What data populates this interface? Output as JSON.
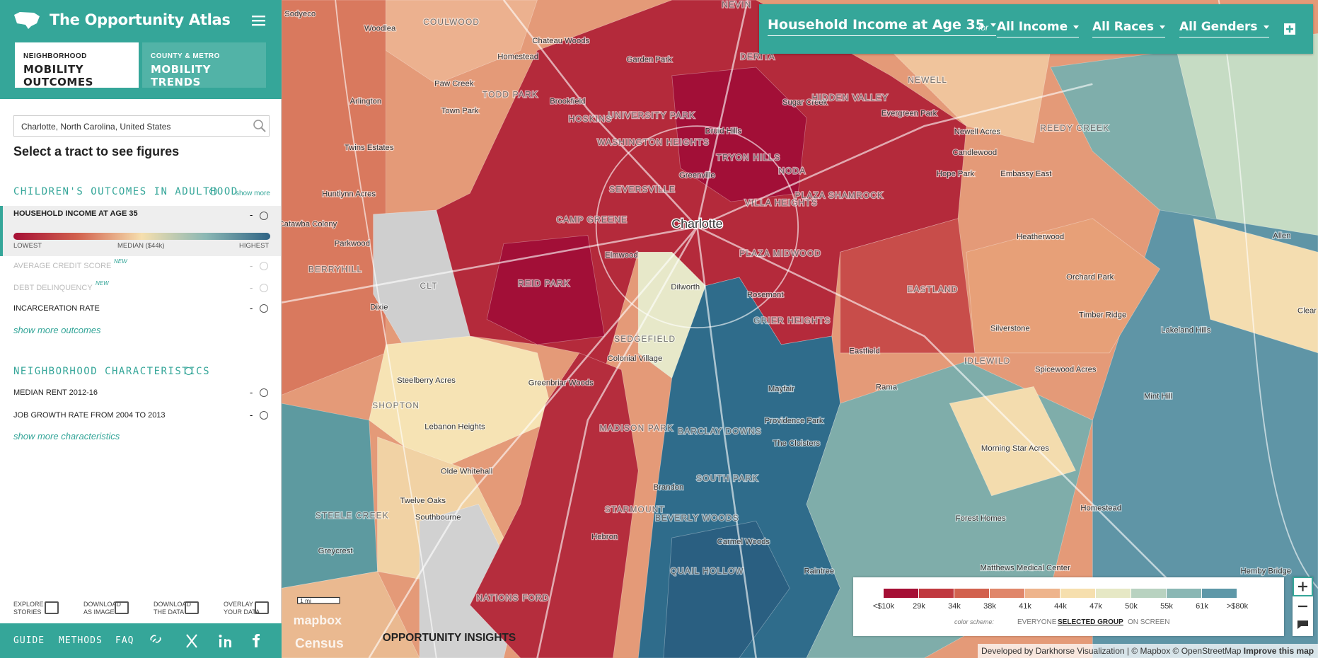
{
  "header": {
    "title": "The Opportunity Atlas",
    "tabs": [
      {
        "kicker": "NEIGHBORHOOD",
        "label": "MOBILITY OUTCOMES"
      },
      {
        "kicker": "COUNTY & METRO",
        "label": "MOBILITY TRENDS"
      }
    ]
  },
  "search": "Charlotte, North Carolina, United States",
  "prompt": "Select a tract to see figures",
  "outcomes": {
    "heading": "CHILDREN'S OUTCOMES IN ADULTHOOD",
    "show_more": "show more",
    "selected": {
      "label": "HOUSEHOLD INCOME AT AGE 35",
      "value": "-",
      "scale": [
        "LOWEST",
        "MEDIAN ($44k)",
        "HIGHEST"
      ]
    },
    "items": [
      {
        "label": "AVERAGE CREDIT SCORE",
        "badge": "NEW",
        "value": "-"
      },
      {
        "label": "DEBT DELINQUENCY",
        "badge": "NEW",
        "value": "-"
      },
      {
        "label": "INCARCERATION RATE",
        "value": "-"
      }
    ],
    "more": "show more outcomes"
  },
  "characteristics": {
    "heading": "NEIGHBORHOOD CHARACTERISTICS",
    "items": [
      {
        "label": "MEDIAN RENT 2012-16",
        "value": "-"
      },
      {
        "label": "JOB GROWTH RATE FROM 2004 TO 2013",
        "value": "-"
      }
    ],
    "more": "show more characteristics"
  },
  "tools": [
    "EXPLORE STORIES",
    "DOWNLOAD AS IMAGE",
    "DOWNLOAD THE DATA",
    "OVERLAY YOUR DATA"
  ],
  "footer": [
    "GUIDE",
    "METHODS",
    "FAQ"
  ],
  "toolbar": {
    "measure": "Household Income at Age 35",
    "for": "for",
    "filters": [
      "All Income",
      "All Races",
      "All Genders"
    ]
  },
  "legend": {
    "labels": [
      "<$10k",
      "29k",
      "34k",
      "38k",
      "41k",
      "44k",
      "47k",
      "50k",
      "55k",
      "61k",
      ">$80k"
    ],
    "scheme_label": "color scheme:",
    "schemes": [
      "EVERYONE",
      "SELECTED GROUP",
      "ON SCREEN"
    ]
  },
  "map": {
    "city": "Charlotte",
    "scale": "1 mi",
    "logos": [
      "mapbox",
      "Census",
      "OPPORTUNITY INSIGHTS"
    ],
    "attribution": "Developed by Darkhorse Visualization | © Mapbox © OpenStreetMap",
    "improve": "Improve this map",
    "labels": [
      "Sodyeco",
      "Woodlea",
      "COULWOOD",
      "Chateau Woods",
      "Homestead",
      "Garden Park",
      "DERITA",
      "NEVIN",
      "NEWELL",
      "Paw Creek",
      "TODD PARK",
      "Arlington",
      "Town Park",
      "Brookfield",
      "HOSKINS",
      "UNIVERSITY PARK",
      "WASHINGTON HEIGHTS",
      "Druid Hills",
      "Sugar Creek",
      "HIDDEN VALLEY",
      "Evergreen Park",
      "Newell Acres",
      "REEDY CREEK",
      "Candlewood",
      "Embassy East",
      "Twins Estates",
      "TRYON HILLS",
      "NODA",
      "Hope Park",
      "SEVERSVILLE",
      "Greenville",
      "PLAZA SHAMROCK",
      "Huntlynn Acres",
      "VILLA HEIGHTS",
      "CAMP GREENE",
      "Catawba Colony",
      "Heatherwood",
      "Allen",
      "Parkwood",
      "Elmwood",
      "PLAZA MIDWOOD",
      "Orchard Park",
      "BERRYHILL",
      "CLT",
      "REID PARK",
      "Dilworth",
      "Rosemont",
      "EASTLAND",
      "Dixie",
      "Timber Ridge",
      "GRIER HEIGHTS",
      "Clear",
      "Silverstone",
      "Lakeland Hills",
      "SEDGEFIELD",
      "Colonial Village",
      "Eastfield",
      "IDLEWILD",
      "Spicewood Acres",
      "Steelberry Acres",
      "Greenbriar Woods",
      "Mayfair",
      "Rama",
      "Mint Hill",
      "SHOPTON",
      "Lebanon Heights",
      "MADISON PARK",
      "Providence Park",
      "BARCLAY DOWNS",
      "The Cloisters",
      "Morning Star Acres",
      "Olde Whitehall",
      "SOUTH PARK",
      "Brandon",
      "Twelve Oaks",
      "STARMOUNT",
      "Homestead",
      "Southbourne",
      "STEELE CREEK",
      "BEVERLY WOODS",
      "Forest Homes",
      "Greycrest",
      "Hebron",
      "Carmel Woods",
      "Matthews Medical Center",
      "Hemby Bridge",
      "NATIONS FORD",
      "Raintree",
      "QUAIL HOLLOW"
    ]
  }
}
